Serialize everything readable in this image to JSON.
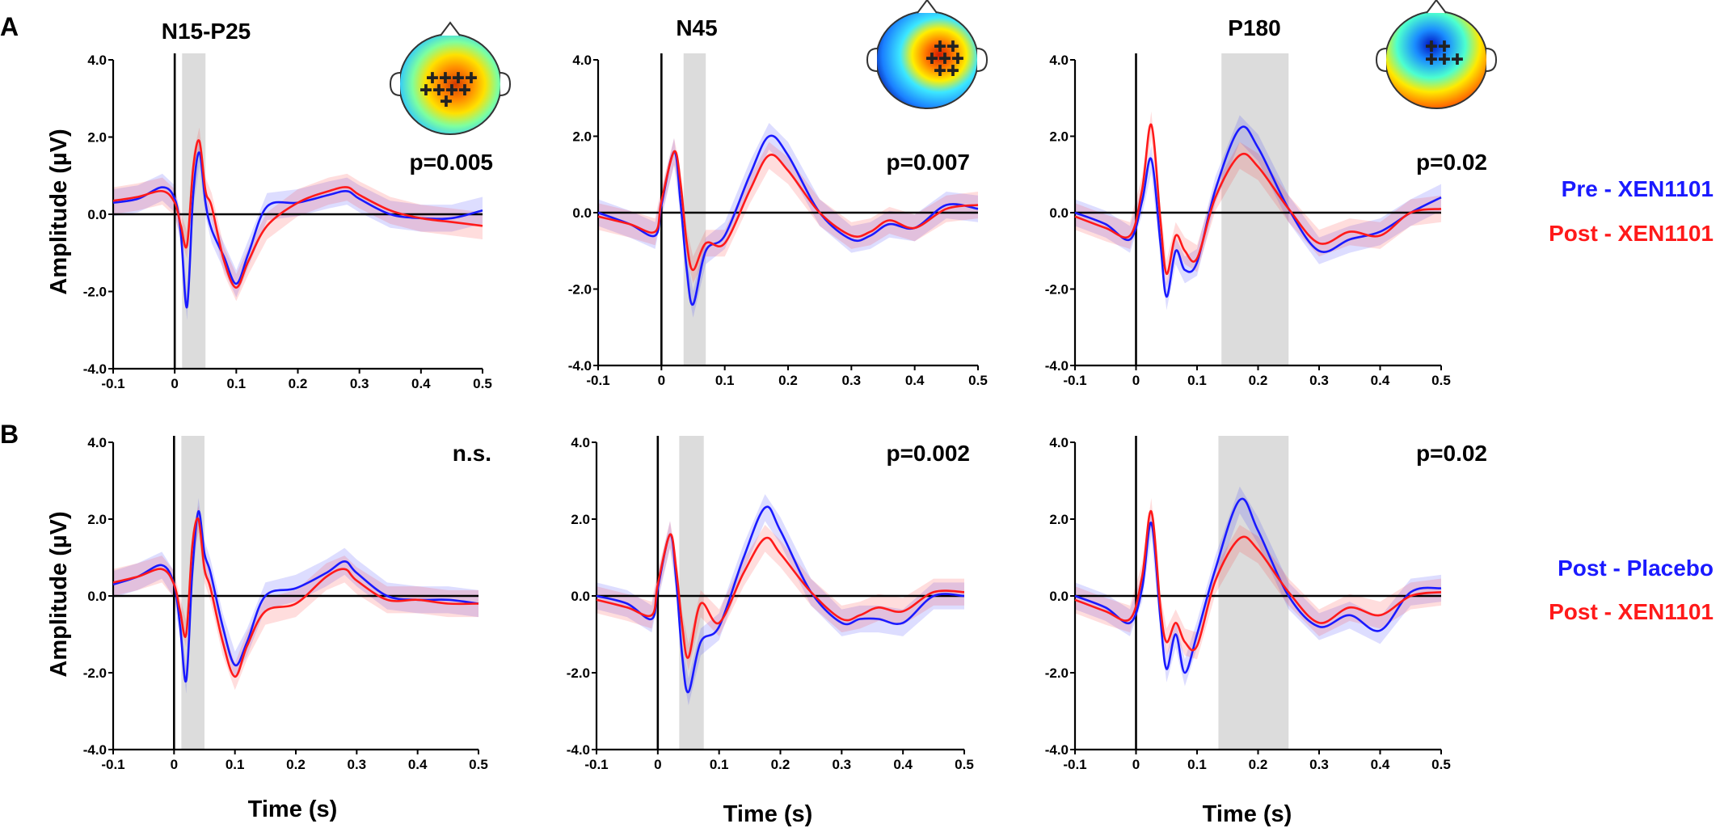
{
  "figure": {
    "row_labels": [
      "A",
      "B"
    ],
    "component_titles": [
      "N15-P25",
      "N45",
      "P180"
    ],
    "ylabel": "Amplitude (µV)",
    "xlabel": "Time (s)",
    "legends": [
      [
        {
          "label": "Pre - XEN1101",
          "color": "#1a1aff"
        },
        {
          "label": "Post - XEN1101",
          "color": "#ff1a1a"
        }
      ],
      [
        {
          "label": "Post - Placebo",
          "color": "#1a1aff"
        },
        {
          "label": "Post - XEN1101",
          "color": "#ff1a1a"
        }
      ]
    ],
    "topomap_icons": [
      "scalp-topography-n15-p25",
      "scalp-topography-n45",
      "scalp-topography-p180"
    ]
  },
  "chart_data": [
    {
      "type": "line",
      "row": "A",
      "title": "N15-P25",
      "annotation": "p=0.005",
      "xlim": [
        -0.1,
        0.5
      ],
      "ylim": [
        -4.0,
        4.0
      ],
      "xticks": [
        "-0.1",
        "0",
        "0.1",
        "0.2",
        "0.3",
        "0.4",
        "0.5"
      ],
      "yticks": [
        "4.0",
        "2.0",
        "0.0",
        "-2.0",
        "-4.0"
      ],
      "window": [
        0.012,
        0.05
      ],
      "series": [
        {
          "name": "Pre - XEN1101",
          "color": "#1a1aff",
          "x": [
            -0.1,
            -0.06,
            -0.02,
            0,
            0.01,
            0.02,
            0.03,
            0.04,
            0.05,
            0.06,
            0.08,
            0.1,
            0.12,
            0.15,
            0.2,
            0.25,
            0.28,
            0.3,
            0.35,
            0.4,
            0.45,
            0.5
          ],
          "y": [
            0.3,
            0.4,
            0.7,
            0.4,
            -0.5,
            -2.4,
            0.5,
            1.6,
            0.3,
            -0.4,
            -1.1,
            -1.8,
            -1.0,
            0.2,
            0.3,
            0.5,
            0.6,
            0.4,
            0.0,
            -0.1,
            -0.1,
            0.1
          ]
        },
        {
          "name": "Post - XEN1101",
          "color": "#ff1a1a",
          "x": [
            -0.1,
            -0.06,
            -0.02,
            0,
            0.01,
            0.02,
            0.03,
            0.04,
            0.05,
            0.06,
            0.08,
            0.1,
            0.12,
            0.15,
            0.2,
            0.25,
            0.28,
            0.3,
            0.35,
            0.4,
            0.45,
            0.5
          ],
          "y": [
            0.35,
            0.45,
            0.6,
            0.3,
            -0.3,
            -0.8,
            1.2,
            1.9,
            0.6,
            0.2,
            -1.2,
            -1.9,
            -1.2,
            -0.3,
            0.3,
            0.6,
            0.7,
            0.5,
            0.1,
            -0.1,
            -0.2,
            -0.3
          ]
        }
      ]
    },
    {
      "type": "line",
      "row": "A",
      "title": "N45",
      "annotation": "p=0.007",
      "xlim": [
        -0.1,
        0.5
      ],
      "ylim": [
        -4.0,
        4.0
      ],
      "xticks": [
        "-0.1",
        "0",
        "0.1",
        "0.2",
        "0.3",
        "0.4",
        "0.5"
      ],
      "yticks": [
        "4.0",
        "2.0",
        "0.0",
        "-2.0",
        "-4.0"
      ],
      "window": [
        0.035,
        0.07
      ],
      "series": [
        {
          "name": "Pre - XEN1101",
          "color": "#1a1aff",
          "x": [
            -0.1,
            -0.05,
            -0.01,
            0,
            0.02,
            0.03,
            0.04,
            0.05,
            0.07,
            0.1,
            0.14,
            0.17,
            0.2,
            0.25,
            0.3,
            0.33,
            0.36,
            0.4,
            0.45,
            0.5
          ],
          "y": [
            0.0,
            -0.3,
            -0.6,
            0.2,
            1.6,
            0.3,
            -1.5,
            -2.4,
            -1.0,
            -0.6,
            1.0,
            2.0,
            1.5,
            0.0,
            -0.7,
            -0.6,
            -0.3,
            -0.4,
            0.2,
            0.1
          ]
        },
        {
          "name": "Post - XEN1101",
          "color": "#ff1a1a",
          "x": [
            -0.1,
            -0.05,
            -0.01,
            0,
            0.02,
            0.03,
            0.04,
            0.05,
            0.07,
            0.1,
            0.14,
            0.17,
            0.2,
            0.25,
            0.3,
            0.33,
            0.36,
            0.4,
            0.45,
            0.5
          ],
          "y": [
            -0.1,
            -0.3,
            -0.5,
            0.3,
            1.6,
            0.8,
            -0.8,
            -1.5,
            -0.8,
            -0.8,
            0.6,
            1.5,
            1.1,
            0.0,
            -0.6,
            -0.5,
            -0.2,
            -0.4,
            0.1,
            0.2
          ]
        }
      ]
    },
    {
      "type": "line",
      "row": "A",
      "title": "P180",
      "annotation": "p=0.02",
      "xlim": [
        -0.1,
        0.5
      ],
      "ylim": [
        -4.0,
        4.0
      ],
      "xticks": [
        "-0.1",
        "0",
        "0.1",
        "0.2",
        "0.3",
        "0.4",
        "0.5"
      ],
      "yticks": [
        "4.0",
        "2.0",
        "0.0",
        "-2.0",
        "-4.0"
      ],
      "window": [
        0.14,
        0.25
      ],
      "series": [
        {
          "name": "Pre - XEN1101",
          "color": "#1a1aff",
          "x": [
            -0.1,
            -0.05,
            -0.01,
            0.01,
            0.025,
            0.04,
            0.05,
            0.065,
            0.08,
            0.1,
            0.13,
            0.17,
            0.2,
            0.25,
            0.3,
            0.35,
            0.4,
            0.45,
            0.5
          ],
          "y": [
            0.0,
            -0.3,
            -0.7,
            0.3,
            1.4,
            -0.8,
            -2.2,
            -1.0,
            -1.5,
            -1.3,
            0.6,
            2.2,
            1.7,
            0.1,
            -1.0,
            -0.7,
            -0.5,
            0.0,
            0.4
          ]
        },
        {
          "name": "Post - XEN1101",
          "color": "#ff1a1a",
          "x": [
            -0.1,
            -0.05,
            -0.01,
            0.01,
            0.025,
            0.04,
            0.05,
            0.065,
            0.08,
            0.1,
            0.13,
            0.17,
            0.2,
            0.25,
            0.3,
            0.35,
            0.4,
            0.45,
            0.5
          ],
          "y": [
            -0.1,
            -0.4,
            -0.6,
            0.6,
            2.3,
            -0.2,
            -1.6,
            -0.6,
            -1.0,
            -1.2,
            0.4,
            1.5,
            1.2,
            0.1,
            -0.8,
            -0.5,
            -0.6,
            0.0,
            0.1
          ]
        }
      ]
    },
    {
      "type": "line",
      "row": "B",
      "title": "",
      "annotation": "n.s.",
      "xlim": [
        -0.1,
        0.5
      ],
      "ylim": [
        -4.0,
        4.0
      ],
      "xticks": [
        "-0.1",
        "0",
        "0.1",
        "0.2",
        "0.3",
        "0.4",
        "0.5"
      ],
      "yticks": [
        "4.0",
        "2.0",
        "0.0",
        "-2.0",
        "-4.0"
      ],
      "window": [
        0.012,
        0.05
      ],
      "series": [
        {
          "name": "Post - Placebo",
          "color": "#1a1aff",
          "x": [
            -0.1,
            -0.06,
            -0.02,
            0,
            0.01,
            0.02,
            0.03,
            0.04,
            0.05,
            0.06,
            0.08,
            0.1,
            0.12,
            0.15,
            0.2,
            0.25,
            0.28,
            0.3,
            0.35,
            0.4,
            0.45,
            0.5
          ],
          "y": [
            0.3,
            0.5,
            0.8,
            0.3,
            -0.8,
            -2.2,
            0.6,
            2.2,
            1.1,
            0.6,
            -0.8,
            -1.8,
            -1.2,
            0.0,
            0.2,
            0.6,
            0.9,
            0.6,
            0.0,
            -0.1,
            -0.1,
            -0.2
          ]
        },
        {
          "name": "Post - XEN1101",
          "color": "#ff1a1a",
          "x": [
            -0.1,
            -0.06,
            -0.02,
            0,
            0.01,
            0.02,
            0.03,
            0.04,
            0.05,
            0.06,
            0.08,
            0.1,
            0.12,
            0.15,
            0.2,
            0.25,
            0.28,
            0.3,
            0.35,
            0.4,
            0.45,
            0.5
          ],
          "y": [
            0.35,
            0.5,
            0.7,
            0.3,
            -0.4,
            -1.0,
            1.3,
            2.0,
            0.7,
            0.2,
            -1.2,
            -2.1,
            -1.3,
            -0.4,
            -0.2,
            0.5,
            0.7,
            0.4,
            -0.1,
            -0.1,
            -0.2,
            -0.2
          ]
        }
      ]
    },
    {
      "type": "line",
      "row": "B",
      "title": "",
      "annotation": "p=0.002",
      "xlim": [
        -0.1,
        0.5
      ],
      "ylim": [
        -4.0,
        4.0
      ],
      "xticks": [
        "-0.1",
        "0",
        "0.1",
        "0.2",
        "0.3",
        "0.4",
        "0.5"
      ],
      "yticks": [
        "4.0",
        "2.0",
        "0.0",
        "-2.0",
        "-4.0"
      ],
      "window": [
        0.035,
        0.075
      ],
      "series": [
        {
          "name": "Post - Placebo",
          "color": "#1a1aff",
          "x": [
            -0.1,
            -0.05,
            -0.01,
            0,
            0.02,
            0.03,
            0.04,
            0.05,
            0.07,
            0.1,
            0.14,
            0.175,
            0.2,
            0.25,
            0.3,
            0.33,
            0.36,
            0.4,
            0.45,
            0.5
          ],
          "y": [
            0.0,
            -0.2,
            -0.6,
            0.2,
            1.6,
            0.4,
            -1.6,
            -2.5,
            -1.2,
            -0.8,
            1.0,
            2.3,
            1.7,
            0.1,
            -0.7,
            -0.6,
            -0.6,
            -0.7,
            0.0,
            0.0
          ]
        },
        {
          "name": "Post - XEN1101",
          "color": "#ff1a1a",
          "x": [
            -0.1,
            -0.05,
            -0.01,
            0,
            0.02,
            0.03,
            0.04,
            0.05,
            0.07,
            0.1,
            0.14,
            0.175,
            0.2,
            0.25,
            0.3,
            0.33,
            0.36,
            0.4,
            0.45,
            0.5
          ],
          "y": [
            -0.1,
            -0.3,
            -0.5,
            0.3,
            1.6,
            0.7,
            -0.8,
            -1.6,
            -0.2,
            -0.7,
            0.6,
            1.5,
            1.1,
            0.1,
            -0.6,
            -0.5,
            -0.3,
            -0.4,
            0.1,
            0.1
          ]
        }
      ]
    },
    {
      "type": "line",
      "row": "B",
      "title": "",
      "annotation": "p=0.02",
      "xlim": [
        -0.1,
        0.5
      ],
      "ylim": [
        -4.0,
        4.0
      ],
      "xticks": [
        "-0.1",
        "0",
        "0.1",
        "0.2",
        "0.3",
        "0.4",
        "0.5"
      ],
      "yticks": [
        "4.0",
        "2.0",
        "0.0",
        "-2.0",
        "-4.0"
      ],
      "window": [
        0.135,
        0.25
      ],
      "series": [
        {
          "name": "Post - Placebo",
          "color": "#1a1aff",
          "x": [
            -0.1,
            -0.05,
            -0.01,
            0.01,
            0.025,
            0.04,
            0.05,
            0.065,
            0.08,
            0.1,
            0.13,
            0.17,
            0.2,
            0.25,
            0.3,
            0.35,
            0.4,
            0.45,
            0.5
          ],
          "y": [
            0.0,
            -0.3,
            -0.7,
            0.2,
            1.9,
            -0.6,
            -1.9,
            -1.0,
            -2.0,
            -1.0,
            0.7,
            2.5,
            1.7,
            0.0,
            -0.8,
            -0.5,
            -0.9,
            0.1,
            0.2
          ]
        },
        {
          "name": "Post - XEN1101",
          "color": "#ff1a1a",
          "x": [
            -0.1,
            -0.05,
            -0.01,
            0.01,
            0.025,
            0.04,
            0.05,
            0.065,
            0.08,
            0.1,
            0.13,
            0.17,
            0.2,
            0.25,
            0.3,
            0.35,
            0.4,
            0.45,
            0.5
          ],
          "y": [
            -0.1,
            -0.4,
            -0.6,
            0.5,
            2.2,
            -0.3,
            -1.2,
            -0.7,
            -1.2,
            -1.3,
            0.4,
            1.5,
            1.2,
            0.1,
            -0.7,
            -0.3,
            -0.5,
            0.0,
            0.1
          ]
        }
      ]
    }
  ]
}
